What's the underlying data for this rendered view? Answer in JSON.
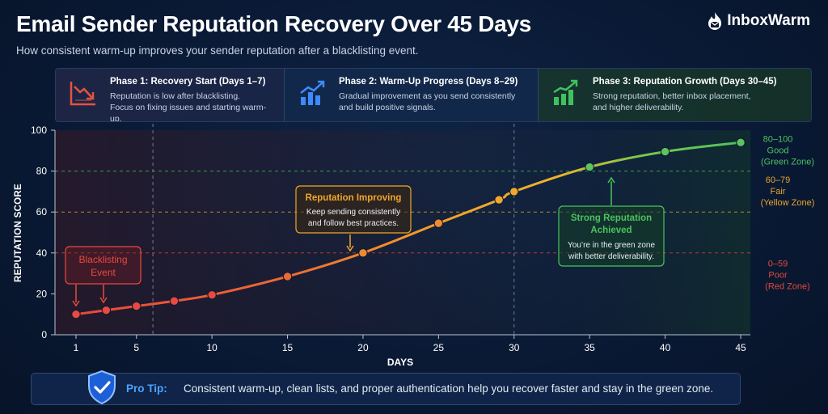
{
  "header": {
    "title": "Email Sender Reputation Recovery Over 45 Days",
    "subtitle": "How consistent warm-up improves your sender reputation after a blacklisting event.",
    "logo_text": "InboxWarm",
    "logo_icon": "flame-icon"
  },
  "phases": [
    {
      "title": "Phase 1: Recovery Start (Days 1–7)",
      "desc": "Reputation is low after blacklisting.\nFocus on fixing issues and starting warm-up.",
      "icon": "declining-chart-icon",
      "color": "#e5533f"
    },
    {
      "title": "Phase 2: Warm-Up Progress (Days 8–29)",
      "desc": "Gradual improvement as you send consistently\nand build positive signals.",
      "icon": "rising-bars-icon",
      "color": "#3d8bff"
    },
    {
      "title": "Phase 3: Reputation Growth (Days 30–45)",
      "desc": "Strong reputation, better inbox placement,\nand higher deliverability.",
      "icon": "growth-bars-icon",
      "color": "#3fc25e"
    }
  ],
  "chart_data": {
    "type": "line",
    "xlabel": "DAYS",
    "ylabel": "REPUTATION SCORE",
    "xlim": [
      1,
      45
    ],
    "ylim": [
      0,
      100
    ],
    "xticks": [
      1,
      5,
      10,
      15,
      20,
      25,
      30,
      35,
      40,
      45
    ],
    "yticks": [
      0,
      20,
      40,
      60,
      80,
      100
    ],
    "grid": false,
    "phase_dividers": [
      7,
      30
    ],
    "threshold_lines": [
      {
        "y": 80,
        "color": "#3f9a4a"
      },
      {
        "y": 60,
        "color": "#b58a2a"
      },
      {
        "y": 40,
        "color": "#b53a32"
      }
    ],
    "series": [
      {
        "x": [
          1,
          3,
          5,
          7.5,
          10,
          15,
          20,
          25,
          29,
          30,
          35,
          40,
          45
        ],
        "y": [
          10,
          12,
          14,
          16.5,
          19.5,
          28.5,
          40,
          54.5,
          66,
          70,
          82,
          89.5,
          94
        ]
      }
    ],
    "zones": [
      {
        "range": "80–100",
        "label": "Good",
        "sub": "(Green Zone)",
        "color": "#4cc25e",
        "y": 90
      },
      {
        "range": "60–79",
        "label": "Fair",
        "sub": "(Yellow Zone)",
        "color": "#e8a42c",
        "y": 70
      },
      {
        "range": "0–59",
        "label": "Poor",
        "sub": "(Red Zone)",
        "color": "#e0483d",
        "y": 29
      }
    ],
    "annotations": [
      {
        "id": "blacklisting",
        "lines": [
          "Blacklisting",
          "Event"
        ],
        "color": "#e84a3e"
      },
      {
        "id": "improving",
        "title": "Reputation Improving",
        "lines": [
          "Keep sending consistently",
          "and follow best practices."
        ],
        "color": "#f0a62a"
      },
      {
        "id": "strong",
        "title_lines": [
          "Strong Reputation",
          "Achieved"
        ],
        "lines": [
          "You’re in the green zone",
          "with better deliverability."
        ],
        "color": "#4cc25e"
      }
    ]
  },
  "tip": {
    "label": "Pro Tip:",
    "text": "Consistent warm-up, clean lists, and proper authentication help you recover faster and stay in the green zone.",
    "icon": "shield-check-icon"
  }
}
